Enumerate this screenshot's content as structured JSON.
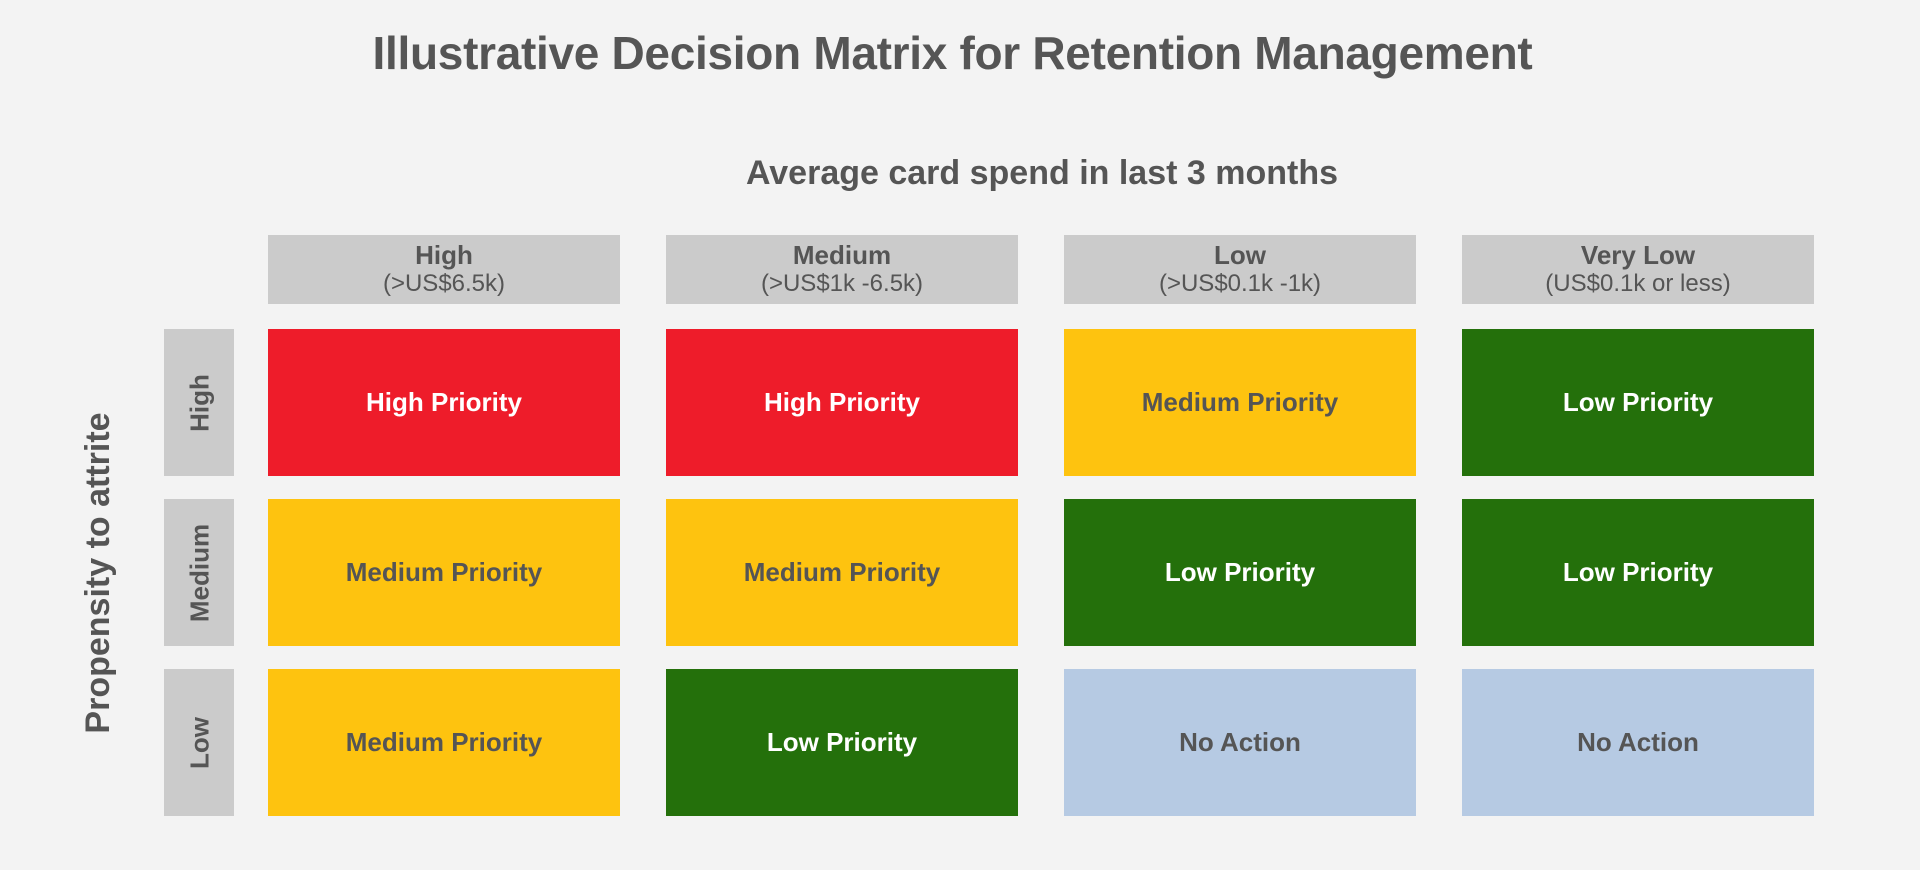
{
  "title": "Illustrative Decision Matrix for Retention Management",
  "x_axis_title": "Average card spend in last 3 months",
  "y_axis_title": "Propensity to attrite",
  "columns": [
    {
      "name": "High",
      "range": "(>US$6.5k)"
    },
    {
      "name": "Medium",
      "range": "(>US$1k -6.5k)"
    },
    {
      "name": "Low",
      "range": "(>US$0.1k -1k)"
    },
    {
      "name": "Very Low",
      "range": "(US$0.1k or less)"
    }
  ],
  "rows": [
    {
      "name": "High",
      "cells": [
        "High Priority",
        "High Priority",
        "Medium Priority",
        "Low Priority"
      ]
    },
    {
      "name": "Medium",
      "cells": [
        "Medium Priority",
        "Medium Priority",
        "Low Priority",
        "Low Priority"
      ]
    },
    {
      "name": "Low",
      "cells": [
        "Medium Priority",
        "Low Priority",
        "No Action",
        "No Action"
      ]
    }
  ],
  "colors": {
    "high_priority": "#ee1c2a",
    "medium_priority": "#fec30f",
    "low_priority": "#24700b",
    "no_action": "#b6cae3",
    "header_gray": "#cbcbcb",
    "background": "#f3f3f3",
    "text_gray": "#555555"
  }
}
